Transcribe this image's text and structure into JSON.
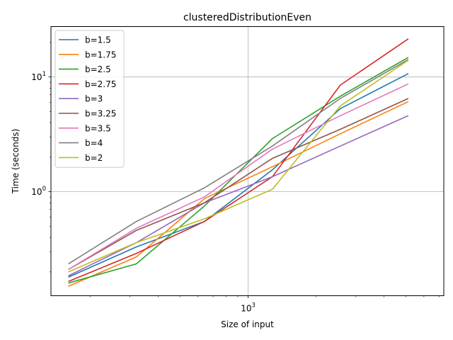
{
  "chart_data": {
    "type": "line",
    "title": "clusteredDistributionEven",
    "xlabel": "Size of input",
    "ylabel": "Time (seconds)",
    "xscale": "log",
    "yscale": "log",
    "xlim": [
      134,
      7350
    ],
    "ylim": [
      0.124,
      27.5
    ],
    "grid": true,
    "legend_position": "top-left",
    "x_ticks_major": [
      {
        "value": 1000,
        "label": "10^3"
      }
    ],
    "y_ticks_major": [
      {
        "value": 1,
        "label": "10^0"
      },
      {
        "value": 10,
        "label": "10^1"
      }
    ],
    "x": [
      160,
      320,
      640,
      1280,
      2560,
      5120
    ],
    "series": [
      {
        "name": "b=1.5",
        "color": "#1f77b4",
        "values": [
          0.18,
          0.33,
          0.55,
          1.55,
          5.3,
          10.7
        ]
      },
      {
        "name": "b=1.75",
        "color": "#ff7f0e",
        "values": [
          0.15,
          0.27,
          0.87,
          1.65,
          3.2,
          6.1
        ]
      },
      {
        "name": "b=2.5",
        "color": "#2ca02c",
        "values": [
          0.16,
          0.235,
          0.75,
          2.9,
          6.8,
          14.8
        ]
      },
      {
        "name": "b=2.75",
        "color": "#d62728",
        "values": [
          0.165,
          0.29,
          0.55,
          1.35,
          8.5,
          21.5
        ]
      },
      {
        "name": "b=3",
        "color": "#9467bd",
        "values": [
          0.185,
          0.36,
          0.8,
          1.35,
          2.5,
          4.6
        ]
      },
      {
        "name": "b=3.25",
        "color": "#8c564b",
        "values": [
          0.21,
          0.46,
          0.8,
          1.95,
          3.5,
          6.5
        ]
      },
      {
        "name": "b=3.5",
        "color": "#e377c2",
        "values": [
          0.21,
          0.48,
          0.9,
          2.35,
          4.6,
          8.7
        ]
      },
      {
        "name": "b=4",
        "color": "#7f7f7f",
        "values": [
          0.235,
          0.55,
          1.08,
          2.5,
          6.5,
          14.2
        ]
      },
      {
        "name": "b=2",
        "color": "#bcbd22",
        "values": [
          0.2,
          0.36,
          0.58,
          1.05,
          5.6,
          14.0
        ]
      }
    ]
  }
}
